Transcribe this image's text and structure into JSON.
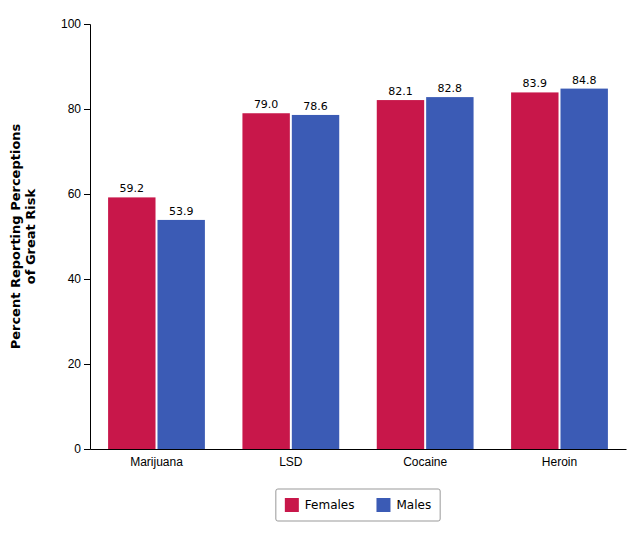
{
  "chart_data": {
    "type": "bar",
    "categories": [
      "Marijuana",
      "LSD",
      "Cocaine",
      "Heroin"
    ],
    "series": [
      {
        "name": "Females",
        "color": "#C8174A",
        "values": [
          59.2,
          79.0,
          82.1,
          83.9
        ],
        "value_labels": [
          "59.2",
          "79.0",
          "82.1",
          "83.9"
        ]
      },
      {
        "name": "Males",
        "color": "#3B5BB5",
        "values": [
          53.9,
          78.6,
          82.8,
          84.8
        ]
      }
    ],
    "ylabel": "Percent Reporting Perceptions\nof Great Risk",
    "ylim": [
      0,
      100
    ],
    "yticks": [
      0,
      20,
      40,
      60,
      80,
      100
    ],
    "grid": false,
    "legend": "bottom",
    "data_labels": true
  }
}
